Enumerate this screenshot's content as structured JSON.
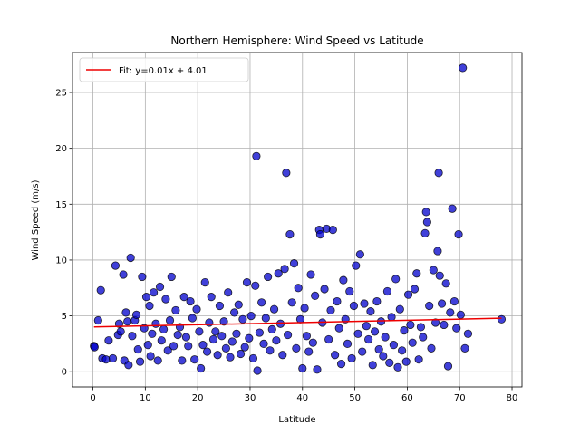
{
  "chart_data": {
    "type": "scatter",
    "title": "Northern Hemisphere: Wind Speed vs Latitude",
    "xlabel": "Latitude",
    "ylabel": "Wind Speed (m/s)",
    "xlim": [
      -3.9,
      81.9
    ],
    "ylim": [
      -1.36,
      28.57
    ],
    "xticks": [
      0,
      10,
      20,
      30,
      40,
      50,
      60,
      70,
      80
    ],
    "yticks": [
      0,
      5,
      10,
      15,
      20,
      25
    ],
    "grid": true,
    "legend": {
      "placement": "top-left",
      "entries": [
        "Fit: y=0.01x + 4.01"
      ]
    },
    "colors": {
      "points": "#0000cc",
      "point_edge": "#000000",
      "fit_line": "#ee0000",
      "grid": "#b0b0b0"
    },
    "series": [
      {
        "kind": "points",
        "points": [
          [
            0.2,
            2.3
          ],
          [
            0.3,
            2.2
          ],
          [
            1.0,
            4.6
          ],
          [
            1.5,
            7.3
          ],
          [
            1.8,
            1.2
          ],
          [
            2.5,
            1.1
          ],
          [
            3.0,
            2.8
          ],
          [
            3.8,
            1.2
          ],
          [
            4.3,
            9.5
          ],
          [
            4.8,
            3.3
          ],
          [
            5.0,
            4.3
          ],
          [
            5.3,
            3.6
          ],
          [
            5.8,
            8.7
          ],
          [
            6.0,
            1.0
          ],
          [
            6.3,
            5.3
          ],
          [
            6.6,
            4.5
          ],
          [
            6.8,
            0.6
          ],
          [
            7.2,
            10.2
          ],
          [
            7.5,
            3.2
          ],
          [
            8.0,
            4.6
          ],
          [
            8.3,
            5.1
          ],
          [
            8.6,
            2.0
          ],
          [
            9.0,
            0.9
          ],
          [
            9.4,
            8.5
          ],
          [
            9.8,
            3.9
          ],
          [
            10.2,
            6.7
          ],
          [
            10.5,
            2.4
          ],
          [
            10.8,
            5.9
          ],
          [
            11.0,
            1.4
          ],
          [
            11.3,
            3.4
          ],
          [
            11.6,
            7.1
          ],
          [
            12.0,
            4.3
          ],
          [
            12.4,
            1.0
          ],
          [
            12.8,
            7.6
          ],
          [
            13.1,
            2.8
          ],
          [
            13.5,
            3.8
          ],
          [
            13.9,
            6.5
          ],
          [
            14.3,
            1.9
          ],
          [
            14.7,
            4.6
          ],
          [
            15.0,
            8.5
          ],
          [
            15.4,
            2.3
          ],
          [
            15.8,
            5.5
          ],
          [
            16.2,
            3.3
          ],
          [
            16.6,
            4.0
          ],
          [
            17.0,
            1.0
          ],
          [
            17.4,
            6.7
          ],
          [
            17.8,
            3.1
          ],
          [
            18.2,
            2.3
          ],
          [
            18.6,
            6.3
          ],
          [
            19.0,
            4.8
          ],
          [
            19.4,
            1.1
          ],
          [
            19.8,
            5.6
          ],
          [
            20.3,
            3.6
          ],
          [
            20.6,
            0.3
          ],
          [
            21.0,
            2.4
          ],
          [
            21.4,
            8.0
          ],
          [
            21.8,
            1.8
          ],
          [
            22.2,
            4.4
          ],
          [
            22.6,
            6.7
          ],
          [
            23.0,
            2.9
          ],
          [
            23.4,
            3.6
          ],
          [
            23.8,
            1.5
          ],
          [
            24.2,
            5.9
          ],
          [
            24.6,
            3.2
          ],
          [
            25.0,
            4.5
          ],
          [
            25.4,
            2.1
          ],
          [
            25.8,
            7.1
          ],
          [
            26.2,
            1.3
          ],
          [
            26.6,
            2.7
          ],
          [
            27.0,
            5.3
          ],
          [
            27.4,
            3.4
          ],
          [
            27.8,
            6.0
          ],
          [
            28.2,
            1.6
          ],
          [
            28.6,
            4.7
          ],
          [
            29.0,
            2.2
          ],
          [
            29.4,
            8.0
          ],
          [
            29.8,
            3.0
          ],
          [
            30.2,
            5.0
          ],
          [
            30.6,
            1.2
          ],
          [
            31.0,
            7.7
          ],
          [
            31.2,
            19.3
          ],
          [
            31.4,
            0.1
          ],
          [
            31.8,
            3.5
          ],
          [
            32.2,
            6.2
          ],
          [
            32.6,
            2.5
          ],
          [
            33.0,
            4.8
          ],
          [
            33.4,
            8.5
          ],
          [
            33.8,
            1.9
          ],
          [
            34.2,
            3.8
          ],
          [
            34.6,
            5.6
          ],
          [
            35.0,
            2.8
          ],
          [
            35.4,
            8.8
          ],
          [
            35.8,
            4.3
          ],
          [
            36.2,
            1.5
          ],
          [
            36.6,
            9.2
          ],
          [
            36.9,
            17.8
          ],
          [
            37.2,
            3.3
          ],
          [
            37.6,
            12.3
          ],
          [
            38.0,
            6.2
          ],
          [
            38.4,
            9.7
          ],
          [
            38.8,
            2.1
          ],
          [
            39.2,
            7.5
          ],
          [
            39.6,
            4.7
          ],
          [
            40.0,
            0.3
          ],
          [
            40.4,
            5.7
          ],
          [
            40.8,
            3.2
          ],
          [
            41.2,
            1.8
          ],
          [
            41.6,
            8.7
          ],
          [
            42.0,
            2.6
          ],
          [
            42.4,
            6.8
          ],
          [
            42.8,
            0.2
          ],
          [
            43.2,
            12.7
          ],
          [
            43.4,
            12.3
          ],
          [
            43.8,
            4.4
          ],
          [
            44.2,
            7.4
          ],
          [
            44.6,
            12.8
          ],
          [
            45.0,
            2.9
          ],
          [
            45.4,
            5.5
          ],
          [
            45.8,
            12.7
          ],
          [
            46.2,
            1.5
          ],
          [
            46.6,
            6.3
          ],
          [
            47.0,
            3.9
          ],
          [
            47.4,
            0.7
          ],
          [
            47.8,
            8.2
          ],
          [
            48.2,
            4.7
          ],
          [
            48.6,
            2.5
          ],
          [
            49.0,
            7.2
          ],
          [
            49.4,
            1.2
          ],
          [
            49.8,
            5.9
          ],
          [
            50.2,
            9.5
          ],
          [
            50.6,
            3.4
          ],
          [
            51.0,
            10.5
          ],
          [
            51.4,
            1.8
          ],
          [
            51.8,
            6.1
          ],
          [
            52.2,
            4.1
          ],
          [
            52.6,
            2.9
          ],
          [
            53.0,
            5.4
          ],
          [
            53.4,
            0.6
          ],
          [
            53.8,
            3.6
          ],
          [
            54.2,
            6.3
          ],
          [
            54.6,
            2.0
          ],
          [
            55.0,
            4.5
          ],
          [
            55.4,
            1.4
          ],
          [
            55.8,
            3.1
          ],
          [
            56.2,
            7.2
          ],
          [
            56.6,
            0.8
          ],
          [
            57.0,
            4.9
          ],
          [
            57.4,
            2.4
          ],
          [
            57.8,
            8.3
          ],
          [
            58.2,
            0.4
          ],
          [
            58.6,
            5.6
          ],
          [
            59.0,
            1.9
          ],
          [
            59.4,
            3.7
          ],
          [
            59.8,
            0.9
          ],
          [
            60.2,
            6.9
          ],
          [
            60.6,
            4.2
          ],
          [
            61.0,
            2.6
          ],
          [
            61.4,
            7.4
          ],
          [
            61.8,
            8.8
          ],
          [
            62.2,
            1.1
          ],
          [
            62.6,
            4.0
          ],
          [
            63.0,
            3.1
          ],
          [
            63.4,
            12.4
          ],
          [
            63.6,
            14.3
          ],
          [
            63.8,
            13.4
          ],
          [
            64.2,
            5.9
          ],
          [
            64.6,
            2.1
          ],
          [
            65.0,
            9.1
          ],
          [
            65.4,
            4.4
          ],
          [
            65.8,
            10.8
          ],
          [
            66.0,
            17.8
          ],
          [
            66.2,
            8.6
          ],
          [
            66.6,
            6.1
          ],
          [
            67.0,
            4.2
          ],
          [
            67.4,
            7.9
          ],
          [
            67.8,
            0.5
          ],
          [
            68.2,
            5.3
          ],
          [
            68.6,
            14.6
          ],
          [
            69.0,
            6.3
          ],
          [
            69.4,
            3.9
          ],
          [
            69.8,
            12.3
          ],
          [
            70.2,
            5.1
          ],
          [
            70.6,
            27.2
          ],
          [
            71.0,
            2.1
          ],
          [
            71.6,
            3.4
          ],
          [
            78.0,
            4.7
          ]
        ]
      },
      {
        "kind": "line",
        "name": "Fit: y=0.01x + 4.01",
        "slope": 0.01,
        "intercept": 4.01,
        "x_range": [
          0.2,
          78.0
        ]
      }
    ]
  }
}
